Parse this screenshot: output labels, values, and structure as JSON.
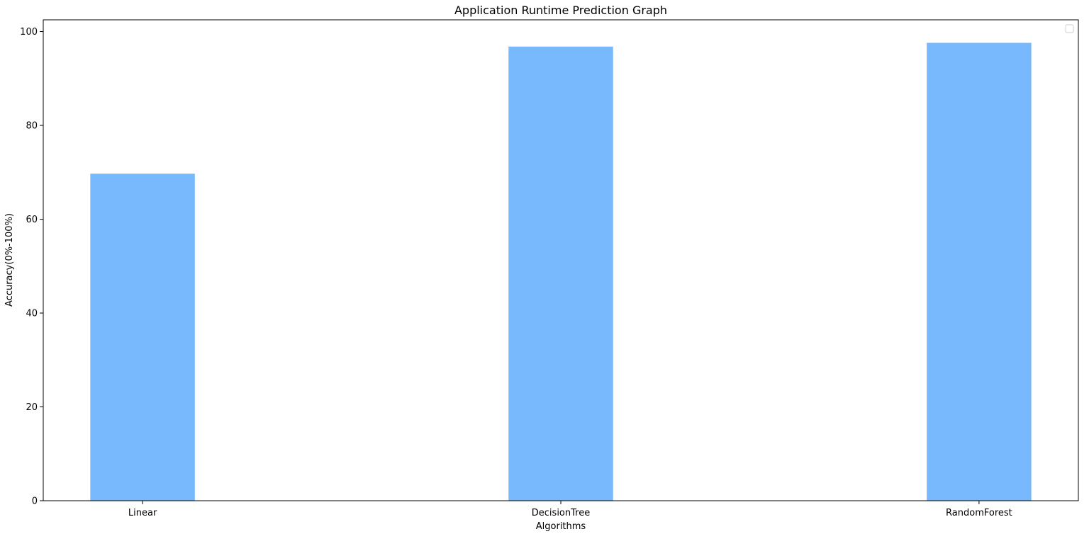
{
  "chart_data": {
    "type": "bar",
    "title": "Application Runtime Prediction Graph",
    "xlabel": "Algorithms",
    "ylabel": "Accuracy(0%-100%)",
    "categories": [
      "Linear",
      "DecisionTree",
      "RandomForest"
    ],
    "values": [
      69.7,
      96.8,
      97.6
    ],
    "ylim": [
      0,
      102.5
    ],
    "yticks": [
      0,
      20,
      40,
      60,
      80,
      100
    ],
    "bar_color": "#77b9fc",
    "grid": false,
    "legend": {
      "placement": "top-right",
      "entries": []
    }
  }
}
